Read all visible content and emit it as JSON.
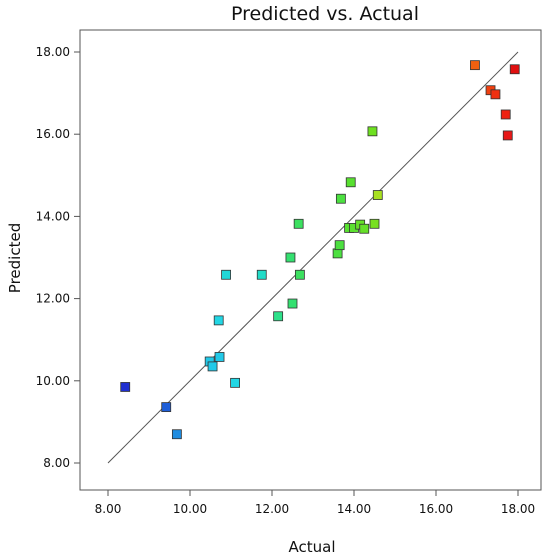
{
  "chart_data": {
    "type": "scatter",
    "title": "Predicted vs. Actual",
    "xlabel": "Actual",
    "ylabel": "Predicted",
    "xlim": [
      8.0,
      18.0
    ],
    "ylim": [
      8.0,
      18.0
    ],
    "x_ticks": [
      "8.00",
      "10.00",
      "12.00",
      "14.00",
      "16.00",
      "18.00"
    ],
    "y_ticks": [
      "8.00",
      "10.00",
      "12.00",
      "14.00",
      "16.00",
      "18.00"
    ],
    "grid": false,
    "reference_line": {
      "from": [
        8.0,
        8.0
      ],
      "to": [
        18.0,
        18.0
      ],
      "color": "#555555"
    },
    "marker": "square",
    "points": [
      {
        "x": 8.42,
        "y": 9.85,
        "color": "#1f2fd0"
      },
      {
        "x": 9.42,
        "y": 9.36,
        "color": "#1f5fd8"
      },
      {
        "x": 9.68,
        "y": 8.7,
        "color": "#1e8ce0"
      },
      {
        "x": 10.48,
        "y": 10.47,
        "color": "#22c9e8"
      },
      {
        "x": 10.55,
        "y": 10.35,
        "color": "#22c9e8"
      },
      {
        "x": 10.72,
        "y": 10.58,
        "color": "#22c9e8"
      },
      {
        "x": 10.7,
        "y": 11.47,
        "color": "#22d6e4"
      },
      {
        "x": 10.88,
        "y": 12.58,
        "color": "#22d8d8"
      },
      {
        "x": 11.1,
        "y": 9.95,
        "color": "#22d6e4"
      },
      {
        "x": 11.75,
        "y": 12.58,
        "color": "#22dcc8"
      },
      {
        "x": 12.15,
        "y": 11.57,
        "color": "#2ee08a"
      },
      {
        "x": 12.45,
        "y": 13.0,
        "color": "#34e070"
      },
      {
        "x": 12.5,
        "y": 11.88,
        "color": "#34e070"
      },
      {
        "x": 12.65,
        "y": 13.82,
        "color": "#3ce060"
      },
      {
        "x": 12.68,
        "y": 12.58,
        "color": "#3ce060"
      },
      {
        "x": 13.6,
        "y": 13.1,
        "color": "#4ce040"
      },
      {
        "x": 13.65,
        "y": 13.3,
        "color": "#4ce040"
      },
      {
        "x": 13.68,
        "y": 14.43,
        "color": "#4ce040"
      },
      {
        "x": 13.88,
        "y": 13.72,
        "color": "#58e030"
      },
      {
        "x": 13.92,
        "y": 14.83,
        "color": "#58e030"
      },
      {
        "x": 14.0,
        "y": 13.72,
        "color": "#5ce030"
      },
      {
        "x": 14.15,
        "y": 13.8,
        "color": "#66e028"
      },
      {
        "x": 14.25,
        "y": 13.7,
        "color": "#66e028"
      },
      {
        "x": 14.45,
        "y": 16.07,
        "color": "#6ee020"
      },
      {
        "x": 14.5,
        "y": 13.82,
        "color": "#78e020"
      },
      {
        "x": 14.58,
        "y": 14.52,
        "color": "#a8e020"
      },
      {
        "x": 16.95,
        "y": 17.68,
        "color": "#f06010"
      },
      {
        "x": 17.33,
        "y": 17.07,
        "color": "#f04010"
      },
      {
        "x": 17.45,
        "y": 16.97,
        "color": "#f03010"
      },
      {
        "x": 17.7,
        "y": 16.48,
        "color": "#ee2010"
      },
      {
        "x": 17.75,
        "y": 15.97,
        "color": "#e81818"
      },
      {
        "x": 17.92,
        "y": 17.58,
        "color": "#e01010"
      }
    ]
  }
}
